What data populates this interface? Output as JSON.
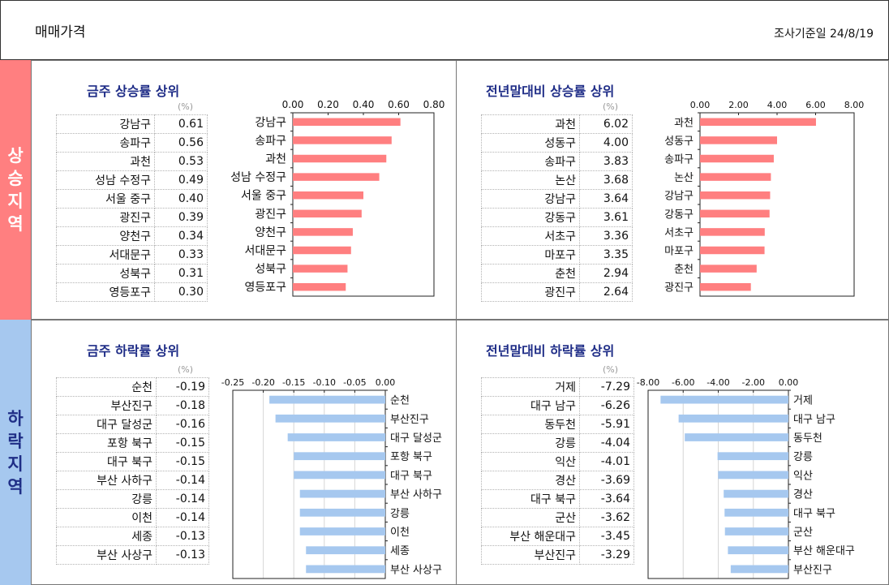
{
  "header": {
    "title": "매매가격",
    "date": "조사기준일 24/8/19"
  },
  "side": {
    "rise": [
      "상",
      "승",
      "지",
      "역"
    ],
    "fall": [
      "하",
      "락",
      "지",
      "역"
    ]
  },
  "colors": {
    "rise_bar": "#ff7f80",
    "fall_bar": "#a6c8ef",
    "title": "#1f2d87",
    "rise_side": "#ff7f80",
    "fall_side": "#a6c8ef"
  },
  "chart_data": [
    {
      "type": "bar",
      "orientation": "horizontal",
      "title": "금주 상승률 상위",
      "unit": "(%)",
      "categories": [
        "강남구",
        "송파구",
        "과천",
        "성남 수정구",
        "서울 중구",
        "광진구",
        "양천구",
        "서대문구",
        "성북구",
        "영등포구"
      ],
      "values": [
        0.61,
        0.56,
        0.53,
        0.49,
        0.4,
        0.39,
        0.34,
        0.33,
        0.31,
        0.3
      ],
      "value_labels": [
        "0.61",
        "0.56",
        "0.53",
        "0.49",
        "0.40",
        "0.39",
        "0.34",
        "0.33",
        "0.31",
        "0.30"
      ],
      "ticks": [
        "0.00",
        "0.20",
        "0.40",
        "0.60",
        "0.80"
      ],
      "xlim": [
        0,
        0.8
      ],
      "axis_position": "top",
      "grid": false
    },
    {
      "type": "bar",
      "orientation": "horizontal",
      "title": "전년말대비 상승률 상위",
      "unit": "(%)",
      "categories": [
        "과천",
        "성동구",
        "송파구",
        "논산",
        "강남구",
        "강동구",
        "서초구",
        "마포구",
        "춘천",
        "광진구"
      ],
      "values": [
        6.02,
        4.0,
        3.83,
        3.68,
        3.64,
        3.61,
        3.36,
        3.35,
        2.94,
        2.64
      ],
      "value_labels": [
        "6.02",
        "4.00",
        "3.83",
        "3.68",
        "3.64",
        "3.61",
        "3.36",
        "3.35",
        "2.94",
        "2.64"
      ],
      "ticks": [
        "0.00",
        "2.00",
        "4.00",
        "6.00",
        "8.00"
      ],
      "xlim": [
        0,
        8
      ],
      "axis_position": "top",
      "grid": false
    },
    {
      "type": "bar",
      "orientation": "horizontal",
      "title": "금주 하락률 상위",
      "unit": "(%)",
      "categories": [
        "순천",
        "부산진구",
        "대구 달성군",
        "포항 북구",
        "대구 북구",
        "부산 사하구",
        "강릉",
        "이천",
        "세종",
        "부산 사상구"
      ],
      "values": [
        -0.19,
        -0.18,
        -0.16,
        -0.15,
        -0.15,
        -0.14,
        -0.14,
        -0.14,
        -0.13,
        -0.13
      ],
      "value_labels": [
        "-0.19",
        "-0.18",
        "-0.16",
        "-0.15",
        "-0.15",
        "-0.14",
        "-0.14",
        "-0.14",
        "-0.13",
        "-0.13"
      ],
      "ticks": [
        "-0.25",
        "-0.20",
        "-0.15",
        "-0.10",
        "-0.05",
        "0.00"
      ],
      "xlim": [
        -0.25,
        0
      ],
      "axis_position": "top",
      "grid": true
    },
    {
      "type": "bar",
      "orientation": "horizontal",
      "title": "전년말대비 하락률 상위",
      "unit": "(%)",
      "categories": [
        "거제",
        "대구 남구",
        "동두천",
        "강릉",
        "익산",
        "경산",
        "대구 북구",
        "군산",
        "부산 해운대구",
        "부산진구"
      ],
      "values": [
        -7.29,
        -6.26,
        -5.91,
        -4.04,
        -4.01,
        -3.69,
        -3.64,
        -3.62,
        -3.45,
        -3.29
      ],
      "value_labels": [
        "-7.29",
        "-6.26",
        "-5.91",
        "-4.04",
        "-4.01",
        "-3.69",
        "-3.64",
        "-3.62",
        "-3.45",
        "-3.29"
      ],
      "ticks": [
        "-8.00",
        "-6.00",
        "-4.00",
        "-2.00",
        "0.00"
      ],
      "xlim": [
        -8,
        0
      ],
      "axis_position": "top",
      "grid": true
    }
  ]
}
